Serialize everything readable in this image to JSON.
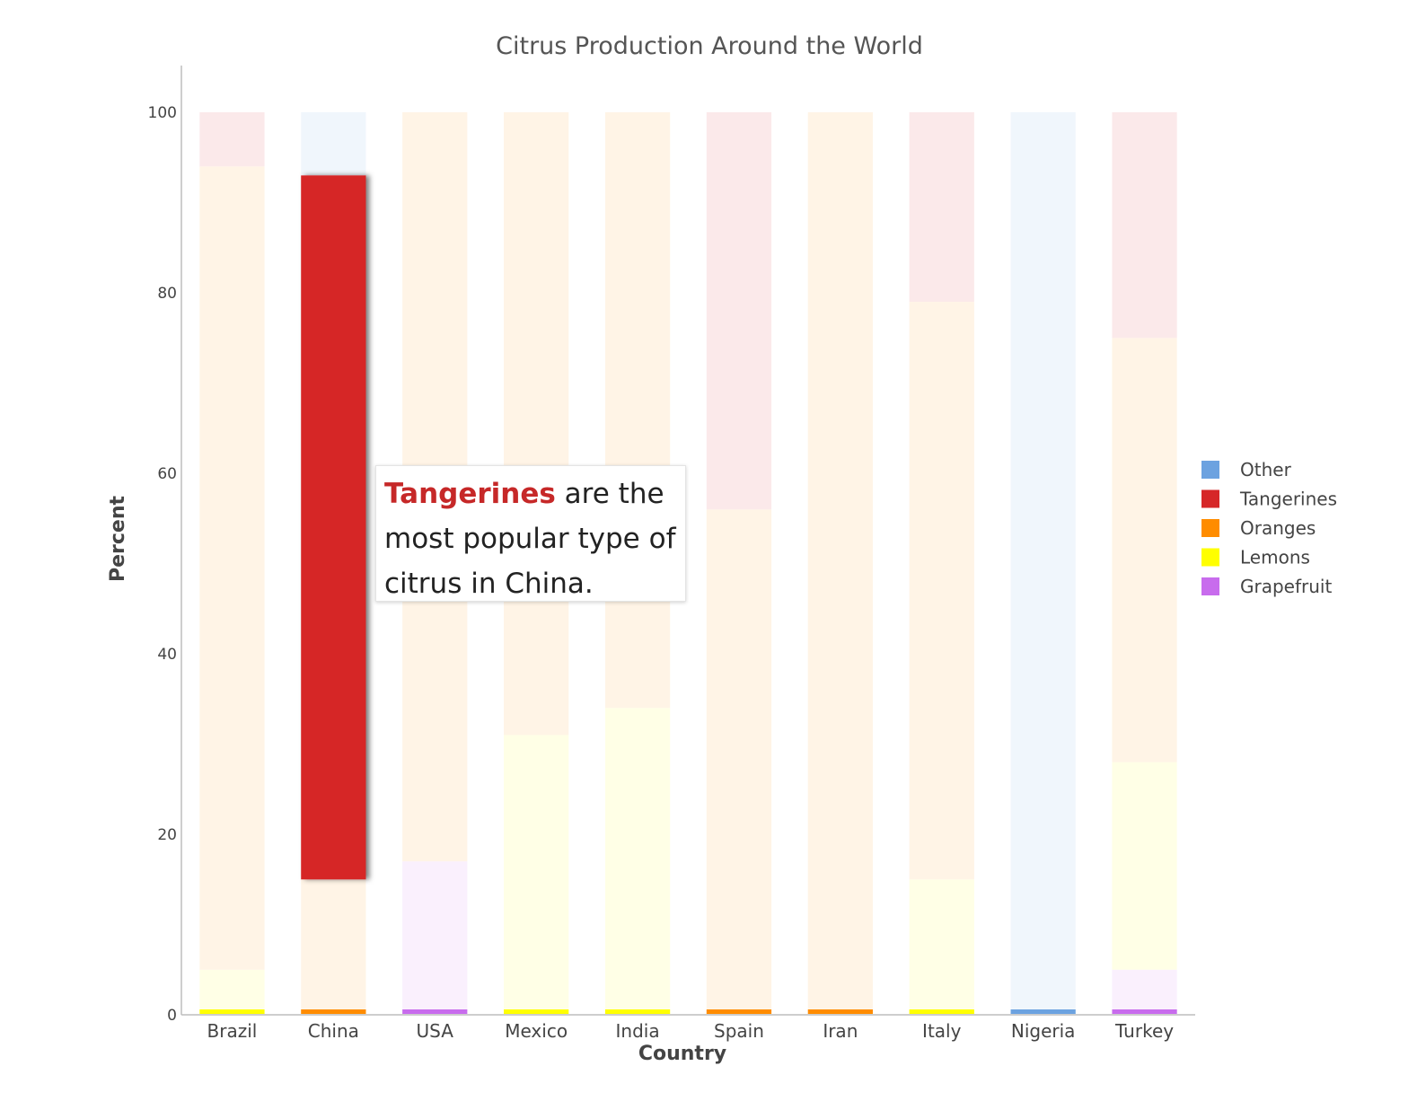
{
  "chart_data": {
    "type": "bar",
    "stacked": true,
    "title": "Citrus Production Around the World",
    "xlabel": "Country",
    "ylabel": "Percent",
    "ylim": [
      0,
      100
    ],
    "yticks": [
      0,
      20,
      40,
      60,
      80,
      100
    ],
    "categories": [
      "Brazil",
      "China",
      "USA",
      "Mexico",
      "India",
      "Spain",
      "Iran",
      "Italy",
      "Nigeria",
      "Turkey"
    ],
    "series": [
      {
        "name": "Grapefruit",
        "color": "#c86ced",
        "values": [
          0,
          0,
          17,
          0,
          0,
          0,
          0,
          0,
          0,
          5
        ]
      },
      {
        "name": "Lemons",
        "color": "#ffff00",
        "values": [
          5,
          0,
          0,
          31,
          34,
          0,
          0,
          15,
          0,
          23
        ]
      },
      {
        "name": "Oranges",
        "color": "#ff8c00",
        "values": [
          89,
          15,
          83,
          69,
          66,
          56,
          100,
          64,
          0,
          47
        ]
      },
      {
        "name": "Tangerines",
        "color": "#d62728",
        "values": [
          6,
          78,
          0,
          0,
          0,
          44,
          0,
          21,
          0,
          25
        ]
      },
      {
        "name": "Other",
        "color": "#6ca2e0",
        "values": [
          0,
          7,
          0,
          0,
          0,
          0,
          0,
          0,
          100,
          0
        ]
      }
    ],
    "highlight": {
      "category": "China",
      "series": "Tangerines"
    },
    "legend_position": "right",
    "legend_order": [
      "Other",
      "Tangerines",
      "Oranges",
      "Lemons",
      "Grapefruit"
    ],
    "grid": false
  },
  "annotation": {
    "highlight_word": "Tangerines",
    "line1_rest": " are the",
    "line2": "most popular type of",
    "line3": "citrus in China."
  }
}
